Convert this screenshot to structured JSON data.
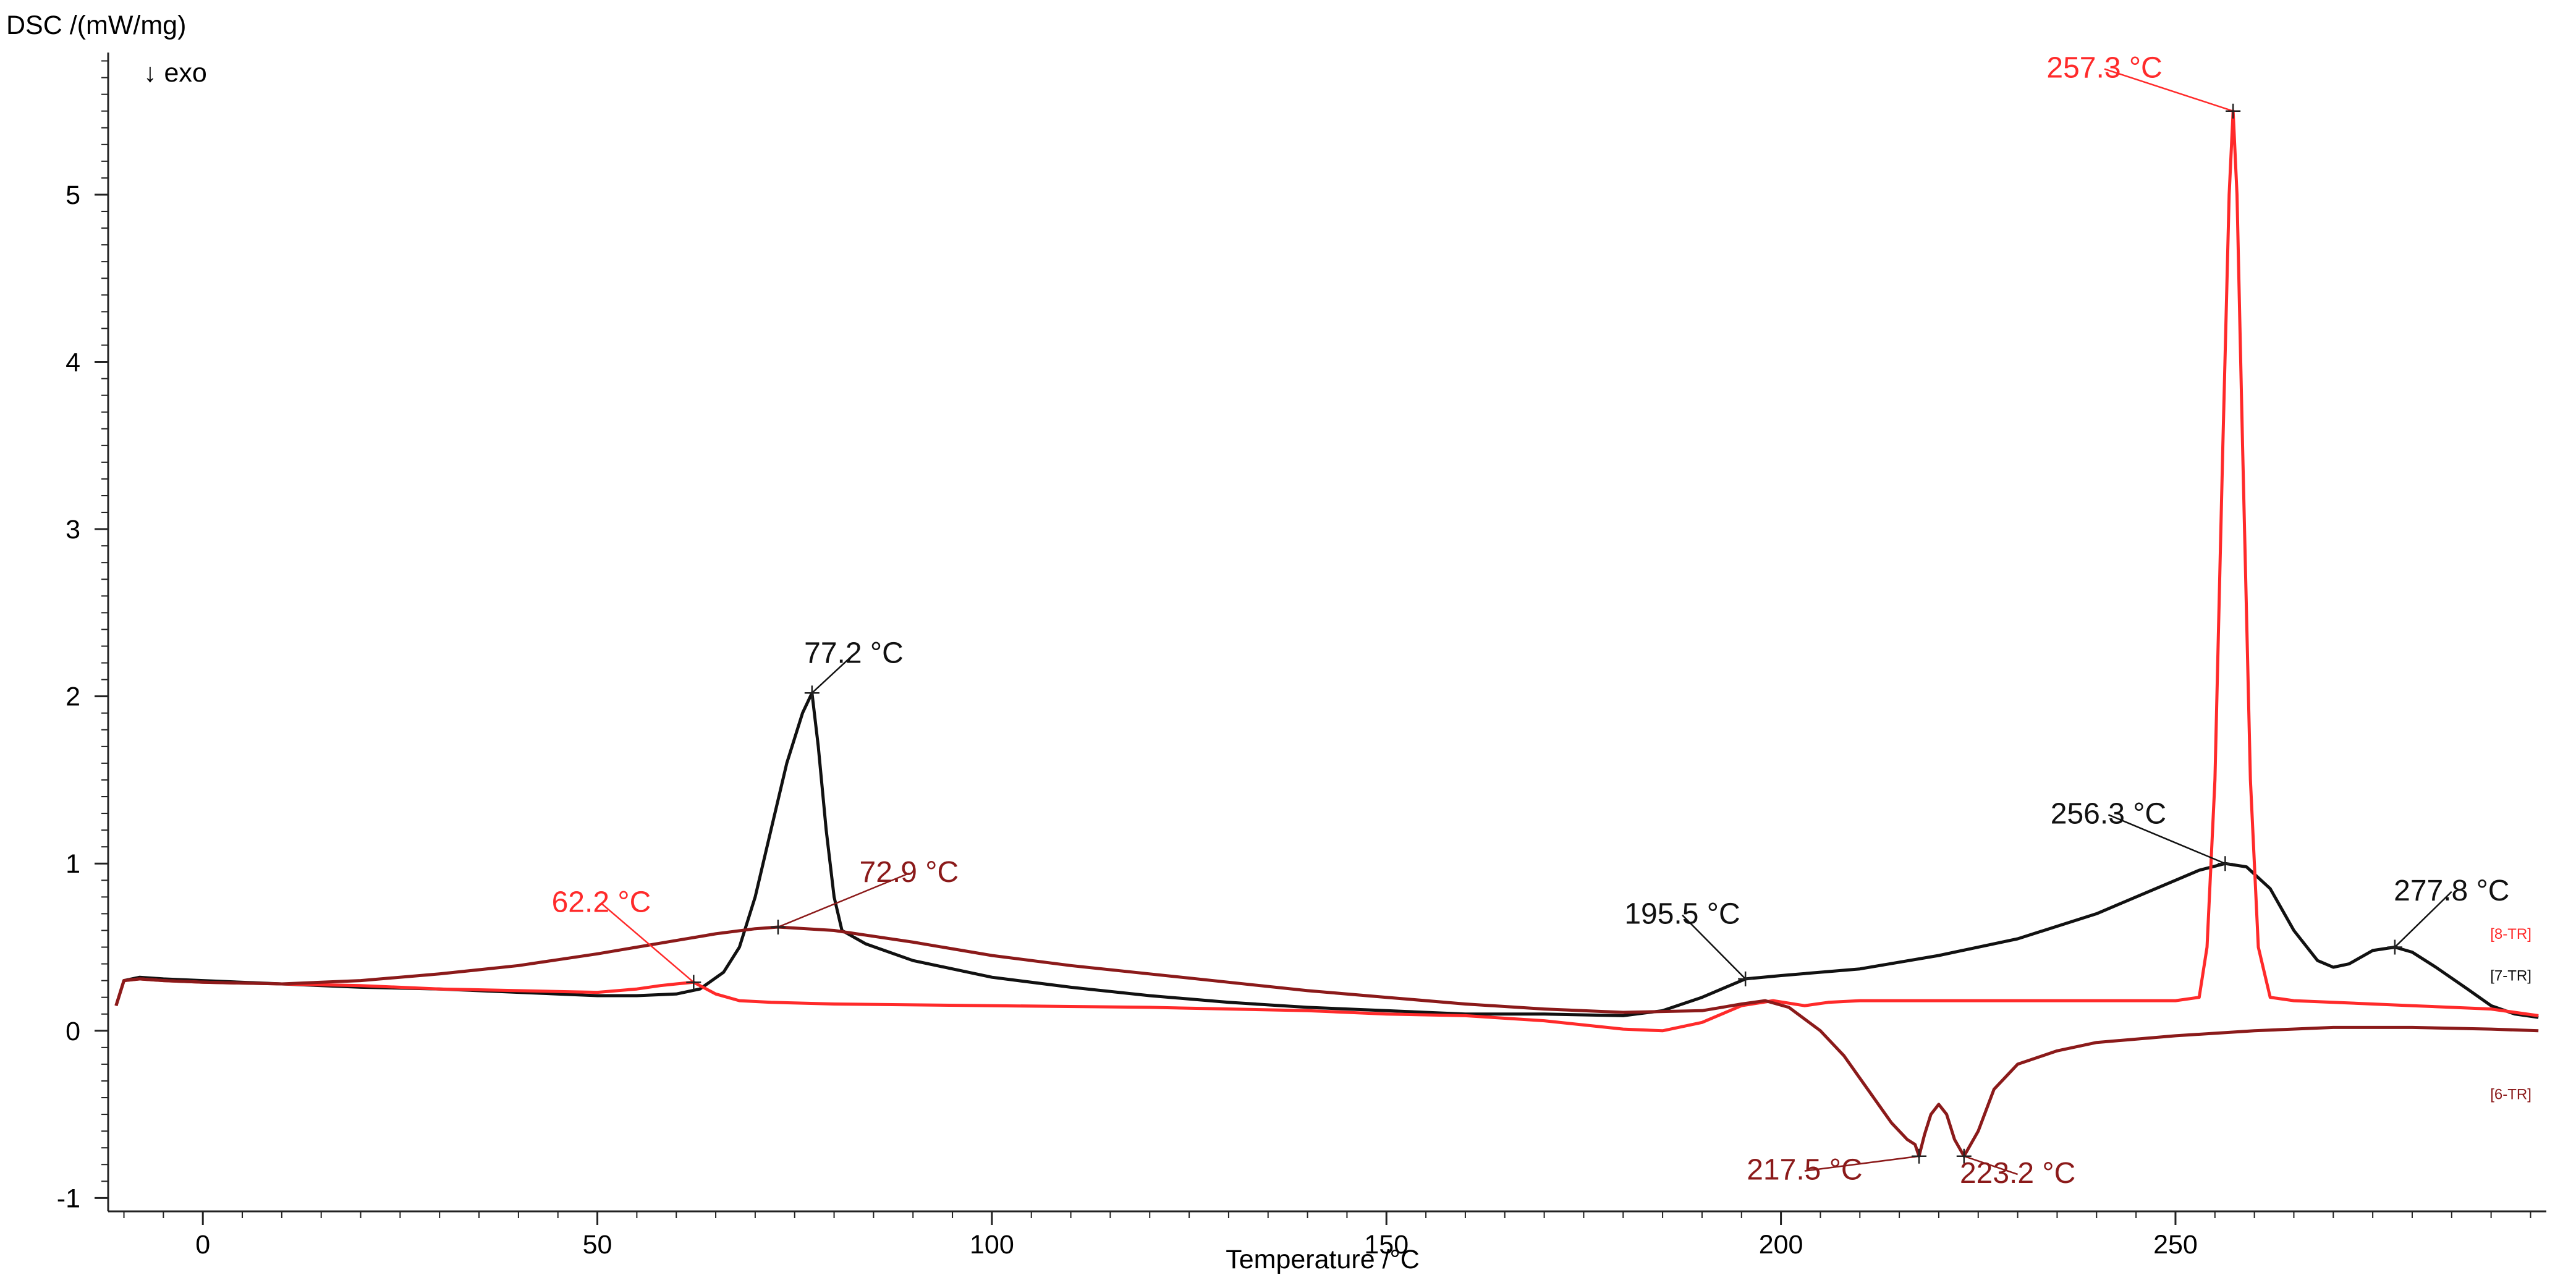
{
  "chart_data": {
    "type": "line",
    "ylabel": "DSC /(mW/mg)",
    "xlabel": "Temperature /°C",
    "exo_note": "↓ exo",
    "xlim": [
      -12,
      297
    ],
    "ylim": [
      -1.08,
      5.85
    ],
    "x_ticks": [
      0,
      50,
      100,
      150,
      200,
      250
    ],
    "y_ticks": [
      -1,
      0,
      1,
      2,
      3,
      4,
      5
    ],
    "x_minor_step": 5,
    "y_minor_step": 0.1,
    "grid": false,
    "colors": {
      "black": "#111111",
      "red": "#ff2a2a",
      "dark_red": "#8b1a1a"
    },
    "series": [
      {
        "name": "[7-TR]",
        "color": "#111111",
        "points": [
          [
            -11,
            0.15
          ],
          [
            -10,
            0.3
          ],
          [
            -8,
            0.32
          ],
          [
            -5,
            0.31
          ],
          [
            0,
            0.3
          ],
          [
            10,
            0.28
          ],
          [
            20,
            0.26
          ],
          [
            30,
            0.25
          ],
          [
            40,
            0.23
          ],
          [
            50,
            0.21
          ],
          [
            55,
            0.21
          ],
          [
            60,
            0.22
          ],
          [
            63,
            0.25
          ],
          [
            66,
            0.35
          ],
          [
            68,
            0.5
          ],
          [
            70,
            0.8
          ],
          [
            72,
            1.2
          ],
          [
            74,
            1.6
          ],
          [
            76,
            1.9
          ],
          [
            77.2,
            2.02
          ],
          [
            78,
            1.7
          ],
          [
            79,
            1.2
          ],
          [
            80,
            0.8
          ],
          [
            81,
            0.6
          ],
          [
            84,
            0.52
          ],
          [
            90,
            0.42
          ],
          [
            100,
            0.32
          ],
          [
            110,
            0.26
          ],
          [
            120,
            0.21
          ],
          [
            130,
            0.17
          ],
          [
            140,
            0.14
          ],
          [
            150,
            0.12
          ],
          [
            160,
            0.1
          ],
          [
            170,
            0.1
          ],
          [
            180,
            0.09
          ],
          [
            185,
            0.12
          ],
          [
            190,
            0.2
          ],
          [
            195.5,
            0.31
          ],
          [
            200,
            0.33
          ],
          [
            210,
            0.37
          ],
          [
            220,
            0.45
          ],
          [
            230,
            0.55
          ],
          [
            240,
            0.7
          ],
          [
            245,
            0.8
          ],
          [
            250,
            0.9
          ],
          [
            253,
            0.96
          ],
          [
            256.3,
            1.0
          ],
          [
            259,
            0.98
          ],
          [
            262,
            0.85
          ],
          [
            265,
            0.6
          ],
          [
            268,
            0.42
          ],
          [
            270,
            0.38
          ],
          [
            272,
            0.4
          ],
          [
            275,
            0.48
          ],
          [
            277.8,
            0.5
          ],
          [
            280,
            0.47
          ],
          [
            283,
            0.38
          ],
          [
            287,
            0.25
          ],
          [
            290,
            0.15
          ],
          [
            293,
            0.1
          ],
          [
            296,
            0.08
          ]
        ]
      },
      {
        "name": "[8-TR]",
        "color": "#ff2a2a",
        "points": [
          [
            -11,
            0.15
          ],
          [
            -10,
            0.3
          ],
          [
            -8,
            0.31
          ],
          [
            -5,
            0.3
          ],
          [
            0,
            0.29
          ],
          [
            10,
            0.28
          ],
          [
            20,
            0.27
          ],
          [
            30,
            0.25
          ],
          [
            40,
            0.24
          ],
          [
            50,
            0.23
          ],
          [
            55,
            0.25
          ],
          [
            58,
            0.27
          ],
          [
            60,
            0.28
          ],
          [
            62.2,
            0.29
          ],
          [
            65,
            0.22
          ],
          [
            68,
            0.18
          ],
          [
            72,
            0.17
          ],
          [
            80,
            0.16
          ],
          [
            100,
            0.15
          ],
          [
            120,
            0.14
          ],
          [
            140,
            0.12
          ],
          [
            150,
            0.1
          ],
          [
            160,
            0.09
          ],
          [
            170,
            0.06
          ],
          [
            180,
            0.01
          ],
          [
            185,
            0.0
          ],
          [
            190,
            0.05
          ],
          [
            195,
            0.15
          ],
          [
            199,
            0.18
          ],
          [
            203,
            0.15
          ],
          [
            206,
            0.17
          ],
          [
            210,
            0.18
          ],
          [
            230,
            0.18
          ],
          [
            250,
            0.18
          ],
          [
            253,
            0.2
          ],
          [
            254,
            0.5
          ],
          [
            255,
            1.5
          ],
          [
            256,
            3.5
          ],
          [
            256.8,
            5.0
          ],
          [
            257.3,
            5.5
          ],
          [
            257.8,
            5.0
          ],
          [
            258.5,
            3.5
          ],
          [
            259.5,
            1.5
          ],
          [
            260.5,
            0.5
          ],
          [
            262,
            0.2
          ],
          [
            265,
            0.18
          ],
          [
            280,
            0.15
          ],
          [
            290,
            0.13
          ],
          [
            296,
            0.09
          ]
        ]
      },
      {
        "name": "[6-TR]",
        "color": "#8b1a1a",
        "points": [
          [
            -11,
            0.15
          ],
          [
            -10,
            0.3
          ],
          [
            -8,
            0.31
          ],
          [
            -5,
            0.3
          ],
          [
            0,
            0.29
          ],
          [
            10,
            0.28
          ],
          [
            20,
            0.3
          ],
          [
            30,
            0.34
          ],
          [
            40,
            0.39
          ],
          [
            50,
            0.46
          ],
          [
            60,
            0.54
          ],
          [
            65,
            0.58
          ],
          [
            70,
            0.61
          ],
          [
            72.9,
            0.62
          ],
          [
            80,
            0.6
          ],
          [
            90,
            0.53
          ],
          [
            100,
            0.45
          ],
          [
            110,
            0.39
          ],
          [
            120,
            0.34
          ],
          [
            130,
            0.29
          ],
          [
            140,
            0.24
          ],
          [
            150,
            0.2
          ],
          [
            160,
            0.16
          ],
          [
            170,
            0.13
          ],
          [
            180,
            0.11
          ],
          [
            190,
            0.12
          ],
          [
            195,
            0.16
          ],
          [
            198,
            0.18
          ],
          [
            201,
            0.14
          ],
          [
            205,
            0.0
          ],
          [
            208,
            -0.15
          ],
          [
            211,
            -0.35
          ],
          [
            214,
            -0.55
          ],
          [
            216,
            -0.65
          ],
          [
            217,
            -0.68
          ],
          [
            217.5,
            -0.75
          ],
          [
            218.2,
            -0.62
          ],
          [
            219,
            -0.5
          ],
          [
            220,
            -0.44
          ],
          [
            221,
            -0.5
          ],
          [
            222,
            -0.65
          ],
          [
            223.2,
            -0.75
          ],
          [
            225,
            -0.6
          ],
          [
            227,
            -0.35
          ],
          [
            230,
            -0.2
          ],
          [
            235,
            -0.12
          ],
          [
            240,
            -0.07
          ],
          [
            250,
            -0.03
          ],
          [
            260,
            0.0
          ],
          [
            270,
            0.02
          ],
          [
            280,
            0.02
          ],
          [
            290,
            0.01
          ],
          [
            296,
            0.0
          ]
        ]
      }
    ],
    "annotations": [
      {
        "label": "77.2 °C",
        "color": "#111111",
        "point": [
          77.2,
          2.02
        ],
        "text_at": [
          82.5,
          2.2
        ]
      },
      {
        "label": "195.5 °C",
        "color": "#111111",
        "point": [
          195.5,
          0.31
        ],
        "text_at": [
          187.5,
          0.64
        ]
      },
      {
        "label": "256.3 °C",
        "color": "#111111",
        "point": [
          256.3,
          1.0
        ],
        "text_at": [
          241.5,
          1.24
        ]
      },
      {
        "label": "277.8 °C",
        "color": "#111111",
        "point": [
          277.8,
          0.5
        ],
        "text_at": [
          285,
          0.78
        ]
      },
      {
        "label": "257.3 °C",
        "color": "#ff2a2a",
        "point": [
          257.3,
          5.5
        ],
        "text_at": [
          241,
          5.7
        ]
      },
      {
        "label": "62.2 °C",
        "color": "#ff2a2a",
        "point": [
          62.2,
          0.29
        ],
        "text_at": [
          50.5,
          0.71
        ]
      },
      {
        "label": "72.9 °C",
        "color": "#8b1a1a",
        "point": [
          72.9,
          0.62
        ],
        "text_at": [
          89.5,
          0.89
        ]
      },
      {
        "label": "217.5 °C",
        "color": "#8b1a1a",
        "point": [
          217.5,
          -0.75
        ],
        "text_at": [
          203,
          -0.89
        ]
      },
      {
        "label": "223.2 °C",
        "color": "#8b1a1a",
        "point": [
          223.2,
          -0.75
        ],
        "text_at": [
          230,
          -0.91
        ]
      }
    ],
    "file_tags": [
      {
        "label": "[8-TR]",
        "color": "#ff2a2a",
        "at": [
          292.5,
          0.55
        ]
      },
      {
        "label": "[7-TR]",
        "color": "#111111",
        "at": [
          292.5,
          0.3
        ]
      },
      {
        "label": "[6-TR]",
        "color": "#8b1a1a",
        "at": [
          292.5,
          -0.41
        ]
      }
    ]
  }
}
